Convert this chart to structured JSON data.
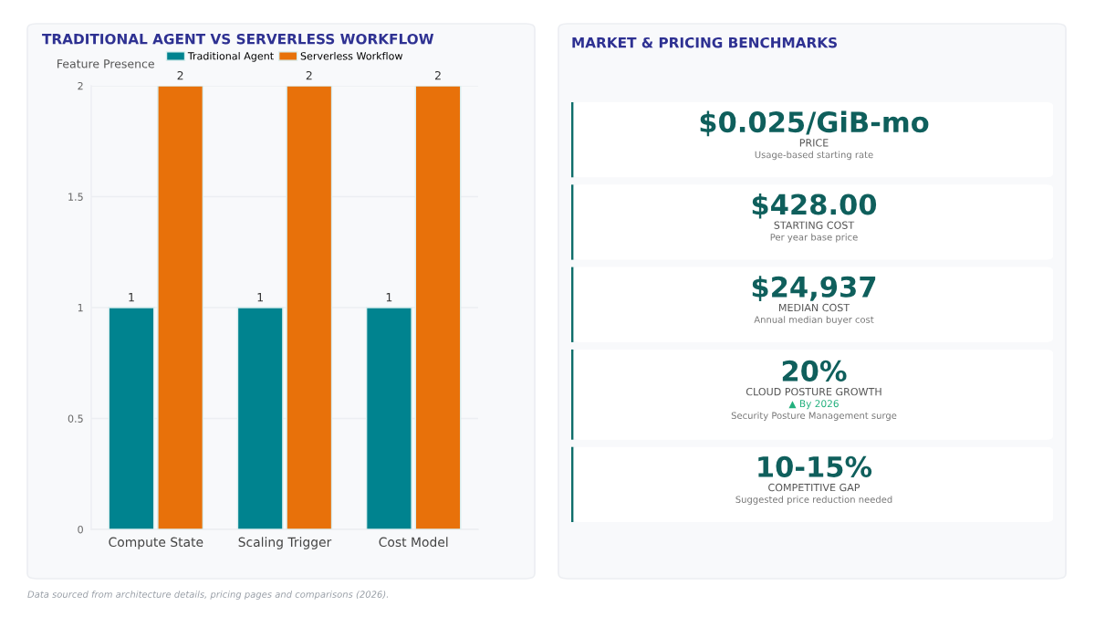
{
  "chart_data": [
    {
      "type": "bar",
      "title": "TRADITIONAL AGENT VS SERVERLESS WORKFLOW",
      "ylabel": "Feature Presence",
      "categories": [
        "Compute State",
        "Scaling Trigger",
        "Cost Model"
      ],
      "series": [
        {
          "name": "Traditional Agent",
          "color": "#00838f",
          "values": [
            1,
            1,
            1
          ]
        },
        {
          "name": "Serverless Workflow",
          "color": "#e8710a",
          "values": [
            2,
            2,
            2
          ]
        }
      ],
      "ylim": [
        0,
        2
      ],
      "yticks": [
        0,
        0.5,
        1,
        1.5,
        2
      ],
      "grid": "y",
      "legend": "top",
      "data_labels": true,
      "annotations": [
        "Data sourced from architecture details, pricing pages and comparisons (2026)."
      ]
    },
    {
      "type": "other",
      "title": "MARKET & PRICING BENCHMARKS",
      "annotations": [
        "$0.025/GiB-mo\nPRICE\nUsage-based starting rate",
        "$428.00\nSTARTING COST\nPer year base price",
        "$24,937\nMEDIAN COST\nAnnual median buyer cost",
        "20%\nCLOUD POSTURE GROWTH\n▲ By 2026\nSecurity Posture Management surge",
        "10-15%\nCOMPETITIVE GAP\nSuggested price reduction needed"
      ]
    }
  ]
}
